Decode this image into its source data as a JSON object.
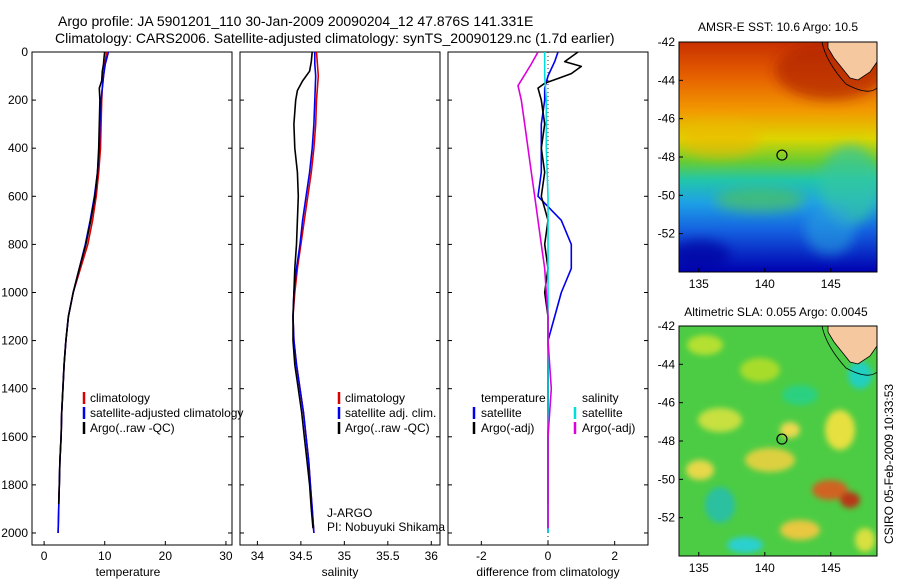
{
  "title": {
    "line1": "Argo profile: JA 5901201_110 30-Jan-2009 20090204_12 47.876S 141.331E",
    "line2": "Climatology: CARS2006. Satellite-adjusted climatology: synTS_20090129.nc (1.7d earlier)"
  },
  "chart_data": [
    {
      "type": "line",
      "name": "temperature-profile",
      "xlabel": "temperature",
      "ylabel": "",
      "xlim": [
        -2,
        31
      ],
      "ylim": [
        2050,
        0
      ],
      "xticks": [
        0,
        10,
        20,
        30
      ],
      "yticks": [
        0,
        200,
        400,
        600,
        800,
        1000,
        1200,
        1400,
        1600,
        1800,
        2000
      ],
      "legend": [
        "climatology",
        "satellite-adjusted climatology",
        "Argo(..raw -QC)"
      ],
      "series": [
        {
          "name": "climatology",
          "color": "#dd0000",
          "points": [
            [
              10.3,
              0
            ],
            [
              10.2,
              20
            ],
            [
              10.0,
              50
            ],
            [
              9.8,
              100
            ],
            [
              9.6,
              150
            ],
            [
              9.5,
              200
            ],
            [
              9.4,
              300
            ],
            [
              9.3,
              400
            ],
            [
              9.0,
              500
            ],
            [
              8.6,
              600
            ],
            [
              8.0,
              700
            ],
            [
              7.2,
              800
            ],
            [
              6.0,
              900
            ],
            [
              4.8,
              1000
            ],
            [
              4.0,
              1100
            ],
            [
              3.6,
              1200
            ],
            [
              3.3,
              1300
            ],
            [
              3.1,
              1400
            ],
            [
              2.9,
              1500
            ],
            [
              2.8,
              1600
            ],
            [
              2.6,
              1700
            ],
            [
              2.5,
              1800
            ],
            [
              2.4,
              1900
            ],
            [
              2.3,
              2000
            ]
          ]
        },
        {
          "name": "satellite-adjusted climatology",
          "color": "#0000ee",
          "points": [
            [
              10.6,
              0
            ],
            [
              10.4,
              20
            ],
            [
              10.1,
              50
            ],
            [
              9.8,
              100
            ],
            [
              9.6,
              150
            ],
            [
              9.4,
              200
            ],
            [
              9.2,
              300
            ],
            [
              9.1,
              400
            ],
            [
              8.8,
              500
            ],
            [
              8.3,
              600
            ],
            [
              7.6,
              700
            ],
            [
              6.8,
              800
            ],
            [
              5.8,
              900
            ],
            [
              4.8,
              1000
            ],
            [
              4.0,
              1100
            ],
            [
              3.6,
              1200
            ],
            [
              3.3,
              1300
            ],
            [
              3.1,
              1400
            ],
            [
              2.9,
              1500
            ],
            [
              2.8,
              1600
            ],
            [
              2.6,
              1700
            ],
            [
              2.5,
              1800
            ],
            [
              2.4,
              1900
            ],
            [
              2.3,
              2000
            ]
          ]
        },
        {
          "name": "Argo(..raw -QC)",
          "color": "#000000",
          "points": [
            [
              10.0,
              0
            ],
            [
              9.9,
              20
            ],
            [
              9.8,
              50
            ],
            [
              9.6,
              80
            ],
            [
              9.5,
              120
            ],
            [
              9.1,
              150
            ],
            [
              9.2,
              200
            ],
            [
              9.1,
              300
            ],
            [
              9.0,
              400
            ],
            [
              8.8,
              500
            ],
            [
              8.4,
              600
            ],
            [
              7.7,
              700
            ],
            [
              6.9,
              800
            ],
            [
              5.8,
              900
            ],
            [
              4.8,
              1000
            ],
            [
              4.0,
              1100
            ],
            [
              3.6,
              1200
            ],
            [
              3.3,
              1300
            ],
            [
              3.1,
              1400
            ],
            [
              2.9,
              1500
            ],
            [
              2.8,
              1600
            ],
            [
              2.6,
              1700
            ],
            [
              2.5,
              1800
            ],
            [
              2.4,
              1880
            ]
          ]
        }
      ]
    },
    {
      "type": "line",
      "name": "salinity-profile",
      "xlabel": "salinity",
      "ylabel": "",
      "xlim": [
        33.8,
        36.1
      ],
      "ylim": [
        2050,
        0
      ],
      "xticks": [
        34,
        34.5,
        35,
        35.5,
        36
      ],
      "legend": [
        "climatology",
        "satellite adj. clim.",
        "Argo(..raw -QC)"
      ],
      "annotation": [
        "J-ARGO",
        "PI: Nobuyuki Shikama"
      ],
      "series": [
        {
          "name": "climatology",
          "color": "#dd0000",
          "points": [
            [
              34.68,
              0
            ],
            [
              34.69,
              50
            ],
            [
              34.7,
              100
            ],
            [
              34.68,
              200
            ],
            [
              34.67,
              300
            ],
            [
              34.65,
              400
            ],
            [
              34.62,
              500
            ],
            [
              34.58,
              600
            ],
            [
              34.54,
              700
            ],
            [
              34.5,
              800
            ],
            [
              34.46,
              900
            ],
            [
              34.43,
              1000
            ],
            [
              34.41,
              1100
            ],
            [
              34.42,
              1200
            ],
            [
              34.45,
              1300
            ],
            [
              34.49,
              1400
            ],
            [
              34.53,
              1500
            ],
            [
              34.56,
              1600
            ],
            [
              34.59,
              1700
            ],
            [
              34.61,
              1800
            ],
            [
              34.63,
              1900
            ],
            [
              34.65,
              2000
            ]
          ]
        },
        {
          "name": "satellite adj. clim.",
          "color": "#0000ee",
          "points": [
            [
              34.66,
              0
            ],
            [
              34.66,
              50
            ],
            [
              34.67,
              100
            ],
            [
              34.66,
              200
            ],
            [
              34.65,
              300
            ],
            [
              34.63,
              400
            ],
            [
              34.6,
              500
            ],
            [
              34.56,
              600
            ],
            [
              34.52,
              700
            ],
            [
              34.49,
              800
            ],
            [
              34.45,
              900
            ],
            [
              34.42,
              1000
            ],
            [
              34.41,
              1100
            ],
            [
              34.42,
              1200
            ],
            [
              34.45,
              1300
            ],
            [
              34.49,
              1400
            ],
            [
              34.53,
              1500
            ],
            [
              34.56,
              1600
            ],
            [
              34.59,
              1700
            ],
            [
              34.61,
              1800
            ],
            [
              34.63,
              1900
            ],
            [
              34.65,
              2000
            ]
          ]
        },
        {
          "name": "Argo(..raw -QC)",
          "color": "#000000",
          "points": [
            [
              34.63,
              0
            ],
            [
              34.62,
              40
            ],
            [
              34.6,
              80
            ],
            [
              34.52,
              120
            ],
            [
              34.46,
              160
            ],
            [
              34.44,
              200
            ],
            [
              34.42,
              300
            ],
            [
              34.43,
              400
            ],
            [
              34.46,
              500
            ],
            [
              34.47,
              600
            ],
            [
              34.46,
              700
            ],
            [
              34.45,
              800
            ],
            [
              34.43,
              900
            ],
            [
              34.42,
              1000
            ],
            [
              34.41,
              1100
            ],
            [
              34.41,
              1200
            ],
            [
              34.43,
              1300
            ],
            [
              34.47,
              1400
            ],
            [
              34.51,
              1500
            ],
            [
              34.54,
              1600
            ],
            [
              34.57,
              1700
            ],
            [
              34.6,
              1800
            ],
            [
              34.62,
              1900
            ],
            [
              34.64,
              1980
            ]
          ]
        }
      ]
    },
    {
      "type": "line",
      "name": "difference-profile",
      "xlabel": "difference from climatology",
      "ylabel": "",
      "xlim": [
        -3,
        3
      ],
      "ylim": [
        2050,
        0
      ],
      "xticks": [
        -2,
        0,
        2
      ],
      "legend_left_title": "temperature",
      "legend_right_title": "salinity",
      "legend_left": [
        "satellite",
        "Argo(-adj)"
      ],
      "legend_right": [
        "satellite",
        "Argo(-adj)"
      ],
      "series": [
        {
          "name": "temperature satellite",
          "color": "#0000ee",
          "points": [
            [
              0.3,
              0
            ],
            [
              0.2,
              40
            ],
            [
              0.0,
              100
            ],
            [
              -0.1,
              150
            ],
            [
              -0.1,
              200
            ],
            [
              -0.2,
              300
            ],
            [
              -0.2,
              400
            ],
            [
              -0.2,
              500
            ],
            [
              -0.3,
              600
            ],
            [
              0.4,
              700
            ],
            [
              0.7,
              800
            ],
            [
              0.7,
              900
            ],
            [
              0.4,
              1000
            ],
            [
              0.2,
              1100
            ],
            [
              0.0,
              1200
            ],
            [
              0.0,
              1400
            ],
            [
              0.0,
              1600
            ],
            [
              0.0,
              2000
            ]
          ]
        },
        {
          "name": "temperature Argo(-adj)",
          "color": "#000000",
          "points": [
            [
              0.9,
              0
            ],
            [
              0.5,
              40
            ],
            [
              1.0,
              60
            ],
            [
              0.7,
              90
            ],
            [
              0.3,
              110
            ],
            [
              -0.1,
              130
            ],
            [
              -0.3,
              150
            ],
            [
              -0.2,
              200
            ],
            [
              -0.1,
              300
            ],
            [
              -0.2,
              400
            ],
            [
              -0.1,
              500
            ],
            [
              -0.2,
              600
            ],
            [
              0.0,
              700
            ],
            [
              -0.1,
              800
            ],
            [
              0.0,
              900
            ],
            [
              -0.1,
              1000
            ],
            [
              0.0,
              1100
            ],
            [
              0.0,
              1200
            ],
            [
              0.0,
              1400
            ],
            [
              0.0,
              1600
            ],
            [
              0.0,
              1880
            ]
          ]
        },
        {
          "name": "salinity satellite",
          "color": "#00dddd",
          "points": [
            [
              -0.1,
              0
            ],
            [
              -0.1,
              50
            ],
            [
              -0.1,
              100
            ],
            [
              -0.05,
              200
            ],
            [
              -0.05,
              400
            ],
            [
              0.0,
              600
            ],
            [
              0.0,
              800
            ],
            [
              0.0,
              1000
            ],
            [
              0.0,
              1200
            ],
            [
              0.0,
              1400
            ],
            [
              0.0,
              1600
            ],
            [
              0.0,
              1800
            ],
            [
              0.0,
              2000
            ]
          ]
        },
        {
          "name": "salinity Argo(-adj)",
          "color": "#dd00dd",
          "points": [
            [
              -0.3,
              0
            ],
            [
              -0.5,
              50
            ],
            [
              -0.9,
              140
            ],
            [
              -0.8,
              200
            ],
            [
              -0.7,
              300
            ],
            [
              -0.6,
              400
            ],
            [
              -0.5,
              500
            ],
            [
              -0.4,
              600
            ],
            [
              -0.3,
              700
            ],
            [
              -0.2,
              800
            ],
            [
              -0.1,
              900
            ],
            [
              -0.05,
              1000
            ],
            [
              0.0,
              1100
            ],
            [
              0.0,
              1200
            ],
            [
              0.1,
              1400
            ],
            [
              0.0,
              1600
            ],
            [
              0.0,
              1800
            ],
            [
              0.0,
              1980
            ]
          ]
        }
      ]
    },
    {
      "type": "heatmap",
      "name": "sst-map",
      "title": "AMSR-E SST: 10.6 Argo: 10.5",
      "xlim": [
        133.5,
        148.5
      ],
      "ylim": [
        -54,
        -42
      ],
      "xticks": [
        135,
        140,
        145
      ],
      "yticks": [
        -42,
        -44,
        -46,
        -48,
        -50,
        -52
      ],
      "marker": {
        "lon": 141.3,
        "lat": -47.9
      }
    },
    {
      "type": "heatmap",
      "name": "sla-map",
      "title": "Altimetric SLA: 0.055 Argo: 0.0045",
      "xlim": [
        133.5,
        148.5
      ],
      "ylim": [
        -54,
        -42
      ],
      "xticks": [
        135,
        140,
        145
      ],
      "yticks": [
        -42,
        -44,
        -46,
        -48,
        -50,
        -52
      ],
      "marker": {
        "lon": 141.3,
        "lat": -47.9
      }
    }
  ],
  "footer": {
    "credit": "CSIRO 05-Feb-2009 10:33:53"
  }
}
